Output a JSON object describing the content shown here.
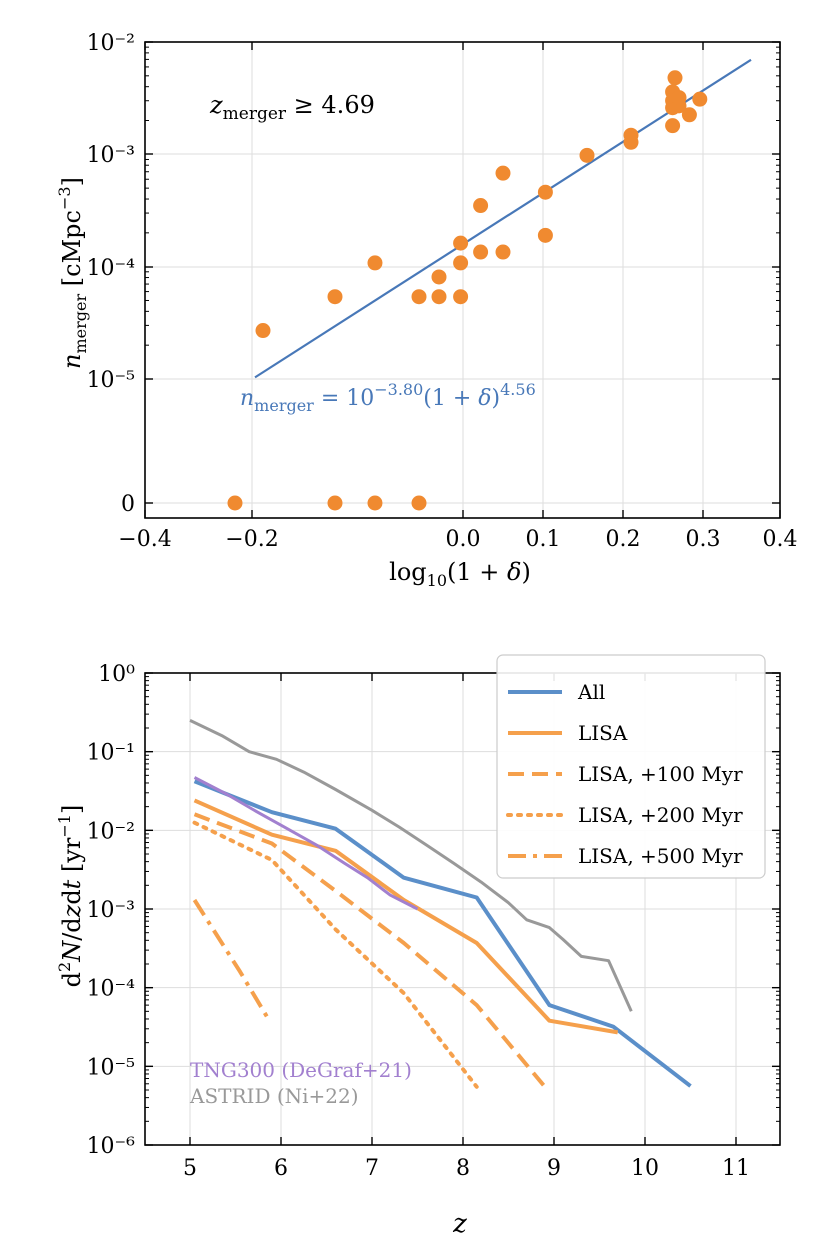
{
  "chart_data": [
    {
      "type": "scatter",
      "xlabel": "log10(1 + δ)",
      "ylabel": "n_merger [cMpc^-3]",
      "xlim": [
        -0.4,
        0.4
      ],
      "xticks": [
        "−0.4",
        "−0.2",
        "0.0",
        "0.1",
        "0.2",
        "0.3",
        "0.4"
      ],
      "xtick_values": [
        -0.4,
        -0.2,
        0.0,
        0.1,
        0.2,
        0.3,
        0.4
      ],
      "ytick_labels": [
        "10⁻²",
        "10⁻³",
        "10⁻⁴",
        "10⁻⁵",
        "0"
      ],
      "yscale": "symlog-like: log decades 1e-5..1e-2 with a separate zero row",
      "annotation": "z_merger ≥ 4.69",
      "fit_label": "n_merger = 10^−3.80 (1 + δ)^4.56",
      "fit": {
        "intercept_log10": -3.8,
        "slope": 4.56,
        "x_range": [
          -0.26,
          0.36
        ],
        "color": "#4878b8"
      },
      "point_color": "#f08a30",
      "points": [
        {
          "x": -0.25,
          "y": 2.7e-05
        },
        {
          "x": -0.16,
          "y": 5.4e-05
        },
        {
          "x": -0.11,
          "y": 0.000108
        },
        {
          "x": -0.055,
          "y": 5.4e-05
        },
        {
          "x": -0.03,
          "y": 5.4e-05
        },
        {
          "x": -0.03,
          "y": 8.1e-05
        },
        {
          "x": -0.003,
          "y": 5.4e-05
        },
        {
          "x": -0.003,
          "y": 0.000108
        },
        {
          "x": -0.003,
          "y": 0.000162
        },
        {
          "x": 0.022,
          "y": 0.000135
        },
        {
          "x": 0.022,
          "y": 0.00035
        },
        {
          "x": 0.05,
          "y": 0.000135
        },
        {
          "x": 0.05,
          "y": 0.00068
        },
        {
          "x": 0.103,
          "y": 0.00019
        },
        {
          "x": 0.103,
          "y": 0.00046
        },
        {
          "x": 0.155,
          "y": 0.00098
        },
        {
          "x": 0.21,
          "y": 0.00128
        },
        {
          "x": 0.21,
          "y": 0.00148
        },
        {
          "x": 0.262,
          "y": 0.0018
        },
        {
          "x": 0.262,
          "y": 0.0026
        },
        {
          "x": 0.262,
          "y": 0.003
        },
        {
          "x": 0.262,
          "y": 0.0036
        },
        {
          "x": 0.265,
          "y": 0.0048
        },
        {
          "x": 0.27,
          "y": 0.0027
        },
        {
          "x": 0.27,
          "y": 0.0032
        },
        {
          "x": 0.283,
          "y": 0.00225
        },
        {
          "x": 0.296,
          "y": 0.0031
        }
      ],
      "zero_points_x": [
        -0.285,
        -0.16,
        -0.11,
        -0.055
      ]
    },
    {
      "type": "line",
      "xlabel": "z",
      "ylabel": "d²N/dzdt [yr⁻¹]",
      "xlim": [
        4.5,
        11.5
      ],
      "xticks": [
        "5",
        "6",
        "7",
        "8",
        "9",
        "10",
        "11"
      ],
      "xtick_values": [
        5,
        6,
        7,
        8,
        9,
        10,
        11
      ],
      "ylim_log10": [
        -6,
        0
      ],
      "ytick_labels": [
        "10⁰",
        "10⁻¹",
        "10⁻²",
        "10⁻³",
        "10⁻⁴",
        "10⁻⁵",
        "10⁻⁶"
      ],
      "legend_position": "top-right",
      "legend": [
        {
          "label": "All",
          "color": "#5b8fc9",
          "style": "solid"
        },
        {
          "label": "LISA",
          "color": "#f5a04c",
          "style": "solid"
        },
        {
          "label": "LISA, +100 Myr",
          "color": "#f5a04c",
          "style": "dashed"
        },
        {
          "label": "LISA, +200 Myr",
          "color": "#f5a04c",
          "style": "dotted"
        },
        {
          "label": "LISA, +500 Myr",
          "color": "#f5a04c",
          "style": "dashdot"
        }
      ],
      "annotations": [
        {
          "text": "TNG300 (DeGraf+21)",
          "color": "#a280cf"
        },
        {
          "text": "ASTRID (Ni+22)",
          "color": "#999999"
        }
      ],
      "series": [
        {
          "name": "All",
          "color": "#5b8fc9",
          "style": "solid",
          "width": 4,
          "x": [
            5.05,
            5.9,
            6.6,
            7.35,
            8.15,
            8.95,
            9.65,
            10.5
          ],
          "y": [
            0.042,
            0.017,
            0.0105,
            0.0025,
            0.0014,
            6e-05,
            3.2e-05,
            5.6e-06
          ]
        },
        {
          "name": "LISA",
          "color": "#f5a04c",
          "style": "solid",
          "width": 4,
          "x": [
            5.05,
            5.9,
            6.6,
            7.35,
            8.15,
            8.95,
            9.7
          ],
          "y": [
            0.024,
            0.0088,
            0.0055,
            0.0013,
            0.00037,
            3.8e-05,
            2.7e-05
          ]
        },
        {
          "name": "LISA, +100 Myr",
          "color": "#f5a04c",
          "style": "dashed",
          "width": 4,
          "x": [
            5.05,
            5.9,
            6.6,
            7.35,
            8.15,
            8.9
          ],
          "y": [
            0.016,
            0.0068,
            0.0017,
            0.00037,
            6e-05,
            5.5e-06
          ]
        },
        {
          "name": "LISA, +200 Myr",
          "color": "#f5a04c",
          "style": "dotted",
          "width": 4,
          "x": [
            5.05,
            5.9,
            6.6,
            7.35,
            8.15
          ],
          "y": [
            0.0125,
            0.0042,
            0.00055,
            8.5e-05,
            5.5e-06
          ]
        },
        {
          "name": "LISA, +500 Myr",
          "color": "#f5a04c",
          "style": "dashdot",
          "width": 4,
          "x": [
            5.05,
            5.55,
            5.85
          ],
          "y": [
            0.0013,
            0.00016,
            4.2e-05
          ]
        },
        {
          "name": "TNG300 (DeGraf+21)",
          "color": "#a280cf",
          "style": "solid",
          "width": 3,
          "x": [
            5.05,
            5.4,
            5.75,
            6.05,
            6.4,
            6.7,
            6.95,
            7.2,
            7.5
          ],
          "y": [
            0.047,
            0.029,
            0.0168,
            0.0108,
            0.0064,
            0.0038,
            0.0025,
            0.0015,
            0.001
          ]
        },
        {
          "name": "ASTRID (Ni+22)",
          "color": "#999999",
          "style": "solid",
          "width": 3,
          "x": [
            5.0,
            5.35,
            5.65,
            5.95,
            6.25,
            6.6,
            7.0,
            7.3,
            7.6,
            7.9,
            8.2,
            8.5,
            8.7,
            8.95,
            9.1,
            9.3,
            9.6,
            9.85
          ],
          "y": [
            0.25,
            0.16,
            0.1,
            0.08,
            0.055,
            0.033,
            0.018,
            0.011,
            0.0065,
            0.0038,
            0.0022,
            0.0012,
            0.00073,
            0.00058,
            0.00041,
            0.00025,
            0.00022,
            5e-05
          ]
        }
      ]
    }
  ]
}
